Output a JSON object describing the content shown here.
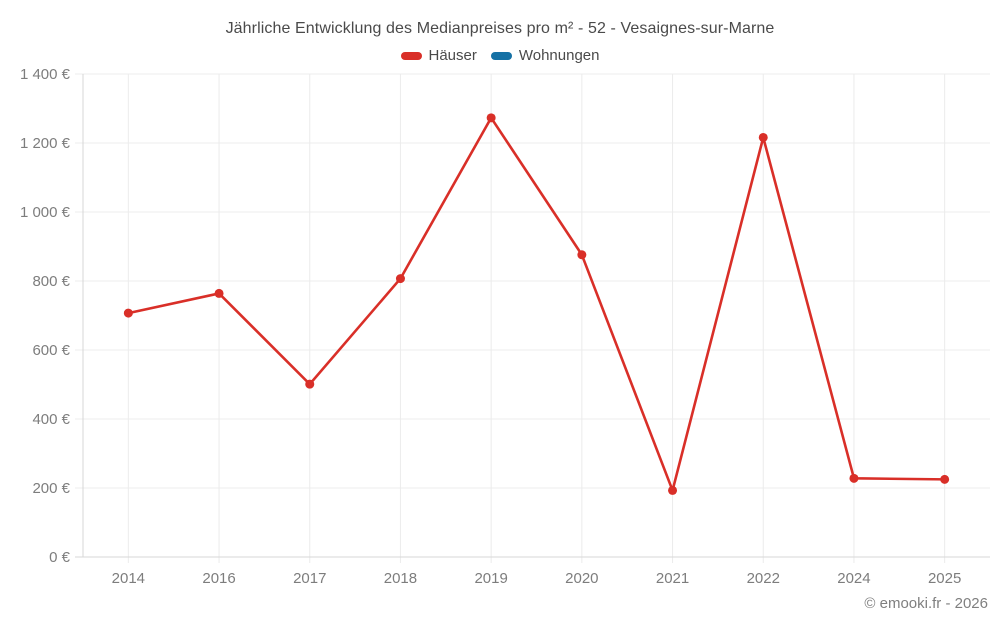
{
  "page": {
    "footer": "© emooki.fr - 2026"
  },
  "legend": {
    "items": [
      {
        "label": "Häuser",
        "color": "#d92f28"
      },
      {
        "label": "Wohnungen",
        "color": "#1571a5"
      }
    ]
  },
  "chart_data": {
    "type": "line",
    "title": "Jährliche Entwicklung des Medianpreises pro m² - 52 - Vesaignes-sur-Marne",
    "categories": [
      "2014",
      "2016",
      "2017",
      "2018",
      "2019",
      "2020",
      "2021",
      "2022",
      "2024",
      "2025"
    ],
    "series": [
      {
        "name": "Häuser",
        "color": "#d92f28",
        "values": [
          707,
          764,
          501,
          807,
          1273,
          876,
          193,
          1216,
          228,
          225
        ]
      },
      {
        "name": "Wohnungen",
        "color": "#1571a5",
        "values": []
      }
    ],
    "xlabel": "",
    "ylabel": "",
    "ylim": [
      0,
      1400
    ],
    "ytick_step": 200,
    "ytick_labels": [
      "0 €",
      "200 €",
      "400 €",
      "600 €",
      "800 €",
      "1 000 €",
      "1 200 €",
      "1 400 €"
    ],
    "grid": true,
    "legend_position": "top",
    "marker": "circle"
  },
  "colors": {
    "background": "#ffffff",
    "grid": "#ececec",
    "axis": "#d7d7d7",
    "tick_label": "#7d7d7d",
    "title_text": "#4a4a4a",
    "footer_text": "#7f7f7f"
  }
}
